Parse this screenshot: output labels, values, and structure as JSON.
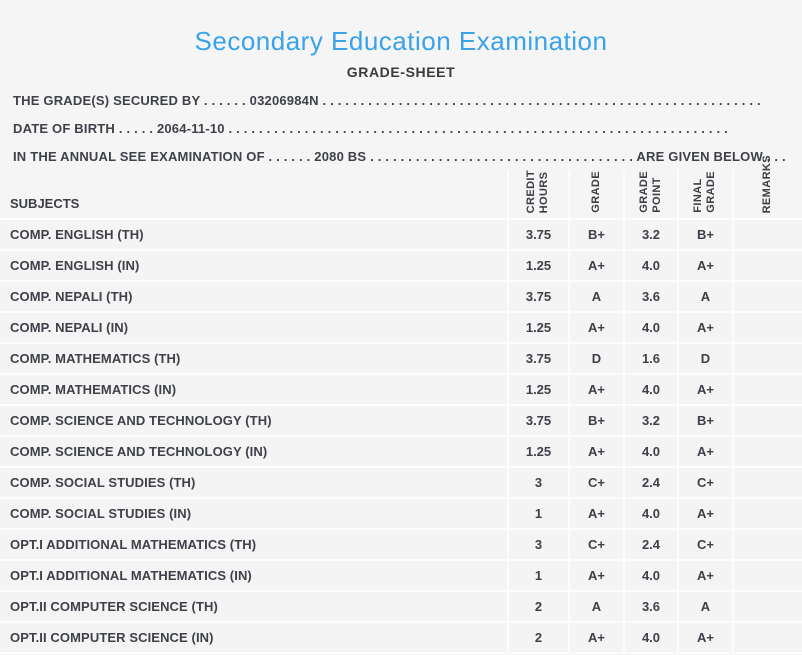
{
  "page": {
    "title": "Secondary Education Examination",
    "subtitle": "GRADE-SHEET",
    "title_color": "#3aa2ea"
  },
  "student_info": {
    "secured_by_line": "THE GRADE(S) SECURED BY . . . . . . 03206984N . . . . . . . . . . . . . . . . . . . . . . . . . . . . . . . . . . . . . . . . . . . . . . . . . . . . . . . . . .",
    "dob_line": "DATE OF BIRTH . . . . . 2064-11-10 . . . . . . . . . . . . . . . . . . . . . . . . . . . . . . . . . . . . . . . . . . . . . . . . . . . . . . . . . . . . . . . . . .",
    "exam_line": "IN THE ANNUAL SEE EXAMINATION OF . . . . . . 2080 BS . . . . . . . . . . . . . . . . . . . . . . . . . . . . . . . . . . . ARE GIVEN BELOW . . ."
  },
  "table": {
    "headers": {
      "subjects": "SUBJECTS",
      "credit_hours": "CREDIT\nHOURS",
      "grade": "GRADE",
      "grade_point": "GRADE\nPOINT",
      "final_grade": "FINAL\nGRADE",
      "remarks": "REMARKS"
    },
    "rows": [
      {
        "subject": "COMP. ENGLISH (TH)",
        "credit_hours": "3.75",
        "grade": "B+",
        "grade_point": "3.2",
        "final_grade": "B+",
        "remarks": ""
      },
      {
        "subject": "COMP. ENGLISH (IN)",
        "credit_hours": "1.25",
        "grade": "A+",
        "grade_point": "4.0",
        "final_grade": "A+",
        "remarks": ""
      },
      {
        "subject": "COMP. NEPALI (TH)",
        "credit_hours": "3.75",
        "grade": "A",
        "grade_point": "3.6",
        "final_grade": "A",
        "remarks": ""
      },
      {
        "subject": "COMP. NEPALI (IN)",
        "credit_hours": "1.25",
        "grade": "A+",
        "grade_point": "4.0",
        "final_grade": "A+",
        "remarks": ""
      },
      {
        "subject": "COMP. MATHEMATICS (TH)",
        "credit_hours": "3.75",
        "grade": "D",
        "grade_point": "1.6",
        "final_grade": "D",
        "remarks": ""
      },
      {
        "subject": "COMP. MATHEMATICS (IN)",
        "credit_hours": "1.25",
        "grade": "A+",
        "grade_point": "4.0",
        "final_grade": "A+",
        "remarks": ""
      },
      {
        "subject": "COMP. SCIENCE AND TECHNOLOGY (TH)",
        "credit_hours": "3.75",
        "grade": "B+",
        "grade_point": "3.2",
        "final_grade": "B+",
        "remarks": ""
      },
      {
        "subject": "COMP. SCIENCE AND TECHNOLOGY (IN)",
        "credit_hours": "1.25",
        "grade": "A+",
        "grade_point": "4.0",
        "final_grade": "A+",
        "remarks": ""
      },
      {
        "subject": "COMP. SOCIAL STUDIES (TH)",
        "credit_hours": "3",
        "grade": "C+",
        "grade_point": "2.4",
        "final_grade": "C+",
        "remarks": ""
      },
      {
        "subject": "COMP. SOCIAL STUDIES (IN)",
        "credit_hours": "1",
        "grade": "A+",
        "grade_point": "4.0",
        "final_grade": "A+",
        "remarks": ""
      },
      {
        "subject": "OPT.I ADDITIONAL MATHEMATICS (TH)",
        "credit_hours": "3",
        "grade": "C+",
        "grade_point": "2.4",
        "final_grade": "C+",
        "remarks": ""
      },
      {
        "subject": "OPT.I ADDITIONAL MATHEMATICS (IN)",
        "credit_hours": "1",
        "grade": "A+",
        "grade_point": "4.0",
        "final_grade": "A+",
        "remarks": ""
      },
      {
        "subject": "OPT.II COMPUTER SCIENCE (TH)",
        "credit_hours": "2",
        "grade": "A",
        "grade_point": "3.6",
        "final_grade": "A",
        "remarks": ""
      },
      {
        "subject": "OPT.II COMPUTER SCIENCE (IN)",
        "credit_hours": "2",
        "grade": "A+",
        "grade_point": "4.0",
        "final_grade": "A+",
        "remarks": ""
      }
    ]
  }
}
